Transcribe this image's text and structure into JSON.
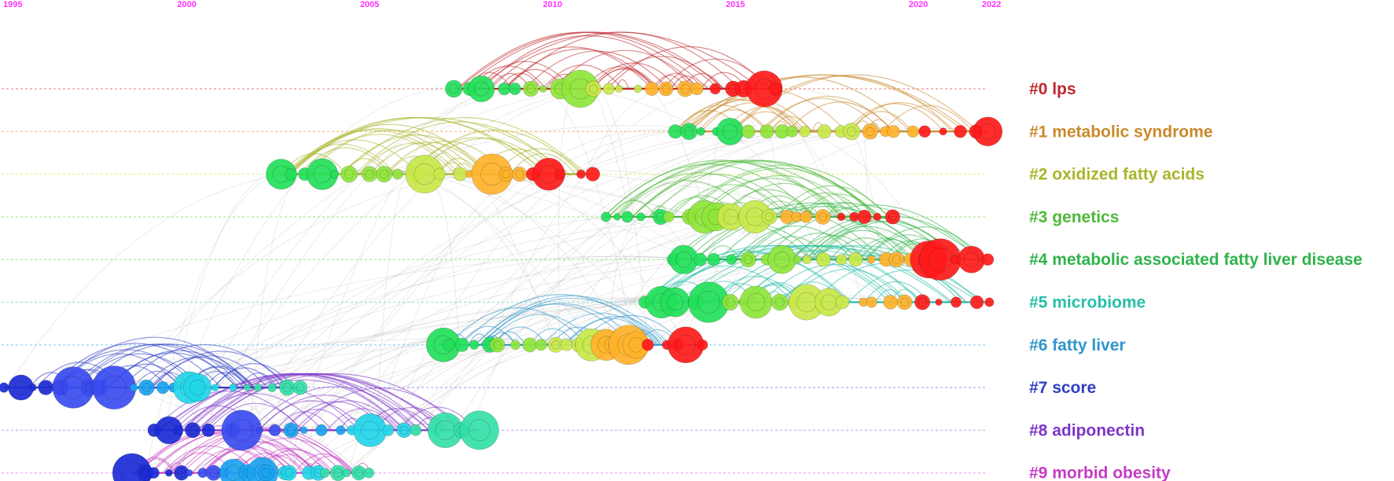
{
  "timeline": {
    "axis_color": "#ff33ff",
    "years": [
      "1995",
      "2000",
      "2005",
      "2010",
      "2015",
      "2020",
      "2022"
    ],
    "year_values": [
      1995,
      2000,
      2005,
      2010,
      2015,
      2020,
      2022
    ],
    "range": [
      1995,
      2022
    ]
  },
  "clusters": [
    {
      "label": "#0 lps",
      "color": "#c0282b",
      "start": 2007.3,
      "end": 2016.1,
      "lane_color": "#f4a6a6"
    },
    {
      "label": "#1 metabolic syndrome",
      "color": "#c98a2b",
      "start": 2013.3,
      "end": 2021.9,
      "lane_color": "#f5c98c"
    },
    {
      "label": "#2 oxidized fatty acids",
      "color": "#a9b52a",
      "start": 2002.5,
      "end": 2011.1,
      "lane_color": "#f0f08a"
    },
    {
      "label": "#3 genetics",
      "color": "#4fb83a",
      "start": 2011.4,
      "end": 2019.3,
      "lane_color": "#b7ec9a"
    },
    {
      "label": "#4 metabolic associated fatty liver disease",
      "color": "#2fb34a",
      "start": 2013.3,
      "end": 2021.9,
      "lane_color": "#a8eaa8"
    },
    {
      "label": "#5 microbiome",
      "color": "#26bfa8",
      "start": 2012.5,
      "end": 2022.0,
      "lane_color": "#9fe8df"
    },
    {
      "label": "#6 fatty liver",
      "color": "#2f96c9",
      "start": 2006.9,
      "end": 2014.1,
      "lane_color": "#9fd8ef"
    },
    {
      "label": "#7 score",
      "color": "#2f3fc4",
      "start": 1995.0,
      "end": 2003.1,
      "lane_color": "#b3b3f0"
    },
    {
      "label": "#8 adiponectin",
      "color": "#7d35c8",
      "start": 1999.0,
      "end": 2008.0,
      "lane_color": "#d0b0f0"
    },
    {
      "label": "#9 morbid obesity",
      "color": "#c43cc4",
      "start": 1998.5,
      "end": 2005.1,
      "lane_color": "#f0b0f0"
    }
  ]
}
